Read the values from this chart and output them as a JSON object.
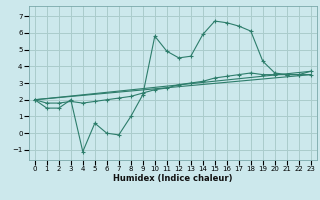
{
  "title": "",
  "xlabel": "Humidex (Indice chaleur)",
  "ylabel": "",
  "background_color": "#cce8ec",
  "line_color": "#2d7d6b",
  "grid_color": "#aacccc",
  "xlim": [
    -0.5,
    23.5
  ],
  "ylim": [
    -1.6,
    7.6
  ],
  "xticks": [
    0,
    1,
    2,
    3,
    4,
    5,
    6,
    7,
    8,
    9,
    10,
    11,
    12,
    13,
    14,
    15,
    16,
    17,
    18,
    19,
    20,
    21,
    22,
    23
  ],
  "yticks": [
    -1,
    0,
    1,
    2,
    3,
    4,
    5,
    6,
    7
  ],
  "lines": [
    {
      "x": [
        0,
        1,
        2,
        3,
        4,
        5,
        6,
        7,
        8,
        9,
        10,
        11,
        12,
        13,
        14,
        15,
        16,
        17,
        18,
        19,
        20,
        21,
        22,
        23
      ],
      "y": [
        2.0,
        1.5,
        1.5,
        2.0,
        -1.1,
        0.6,
        0.0,
        -0.1,
        1.0,
        2.3,
        5.8,
        4.9,
        4.5,
        4.6,
        5.9,
        6.7,
        6.6,
        6.4,
        6.1,
        4.3,
        3.6,
        3.5,
        3.5,
        3.7
      ],
      "marker": true
    },
    {
      "x": [
        0,
        1,
        2,
        3,
        4,
        5,
        6,
        7,
        8,
        9,
        10,
        11,
        12,
        13,
        14,
        15,
        16,
        17,
        18,
        19,
        20,
        21,
        22,
        23
      ],
      "y": [
        2.0,
        1.8,
        1.8,
        1.9,
        1.8,
        1.9,
        2.0,
        2.1,
        2.2,
        2.4,
        2.6,
        2.7,
        2.9,
        3.0,
        3.1,
        3.3,
        3.4,
        3.5,
        3.6,
        3.5,
        3.5,
        3.5,
        3.5,
        3.5
      ],
      "marker": true
    },
    {
      "x": [
        0,
        23
      ],
      "y": [
        2.0,
        3.5
      ],
      "marker": false
    },
    {
      "x": [
        0,
        23
      ],
      "y": [
        2.0,
        3.7
      ],
      "marker": false
    }
  ],
  "xlabel_fontsize": 6.0,
  "tick_fontsize": 5.0
}
